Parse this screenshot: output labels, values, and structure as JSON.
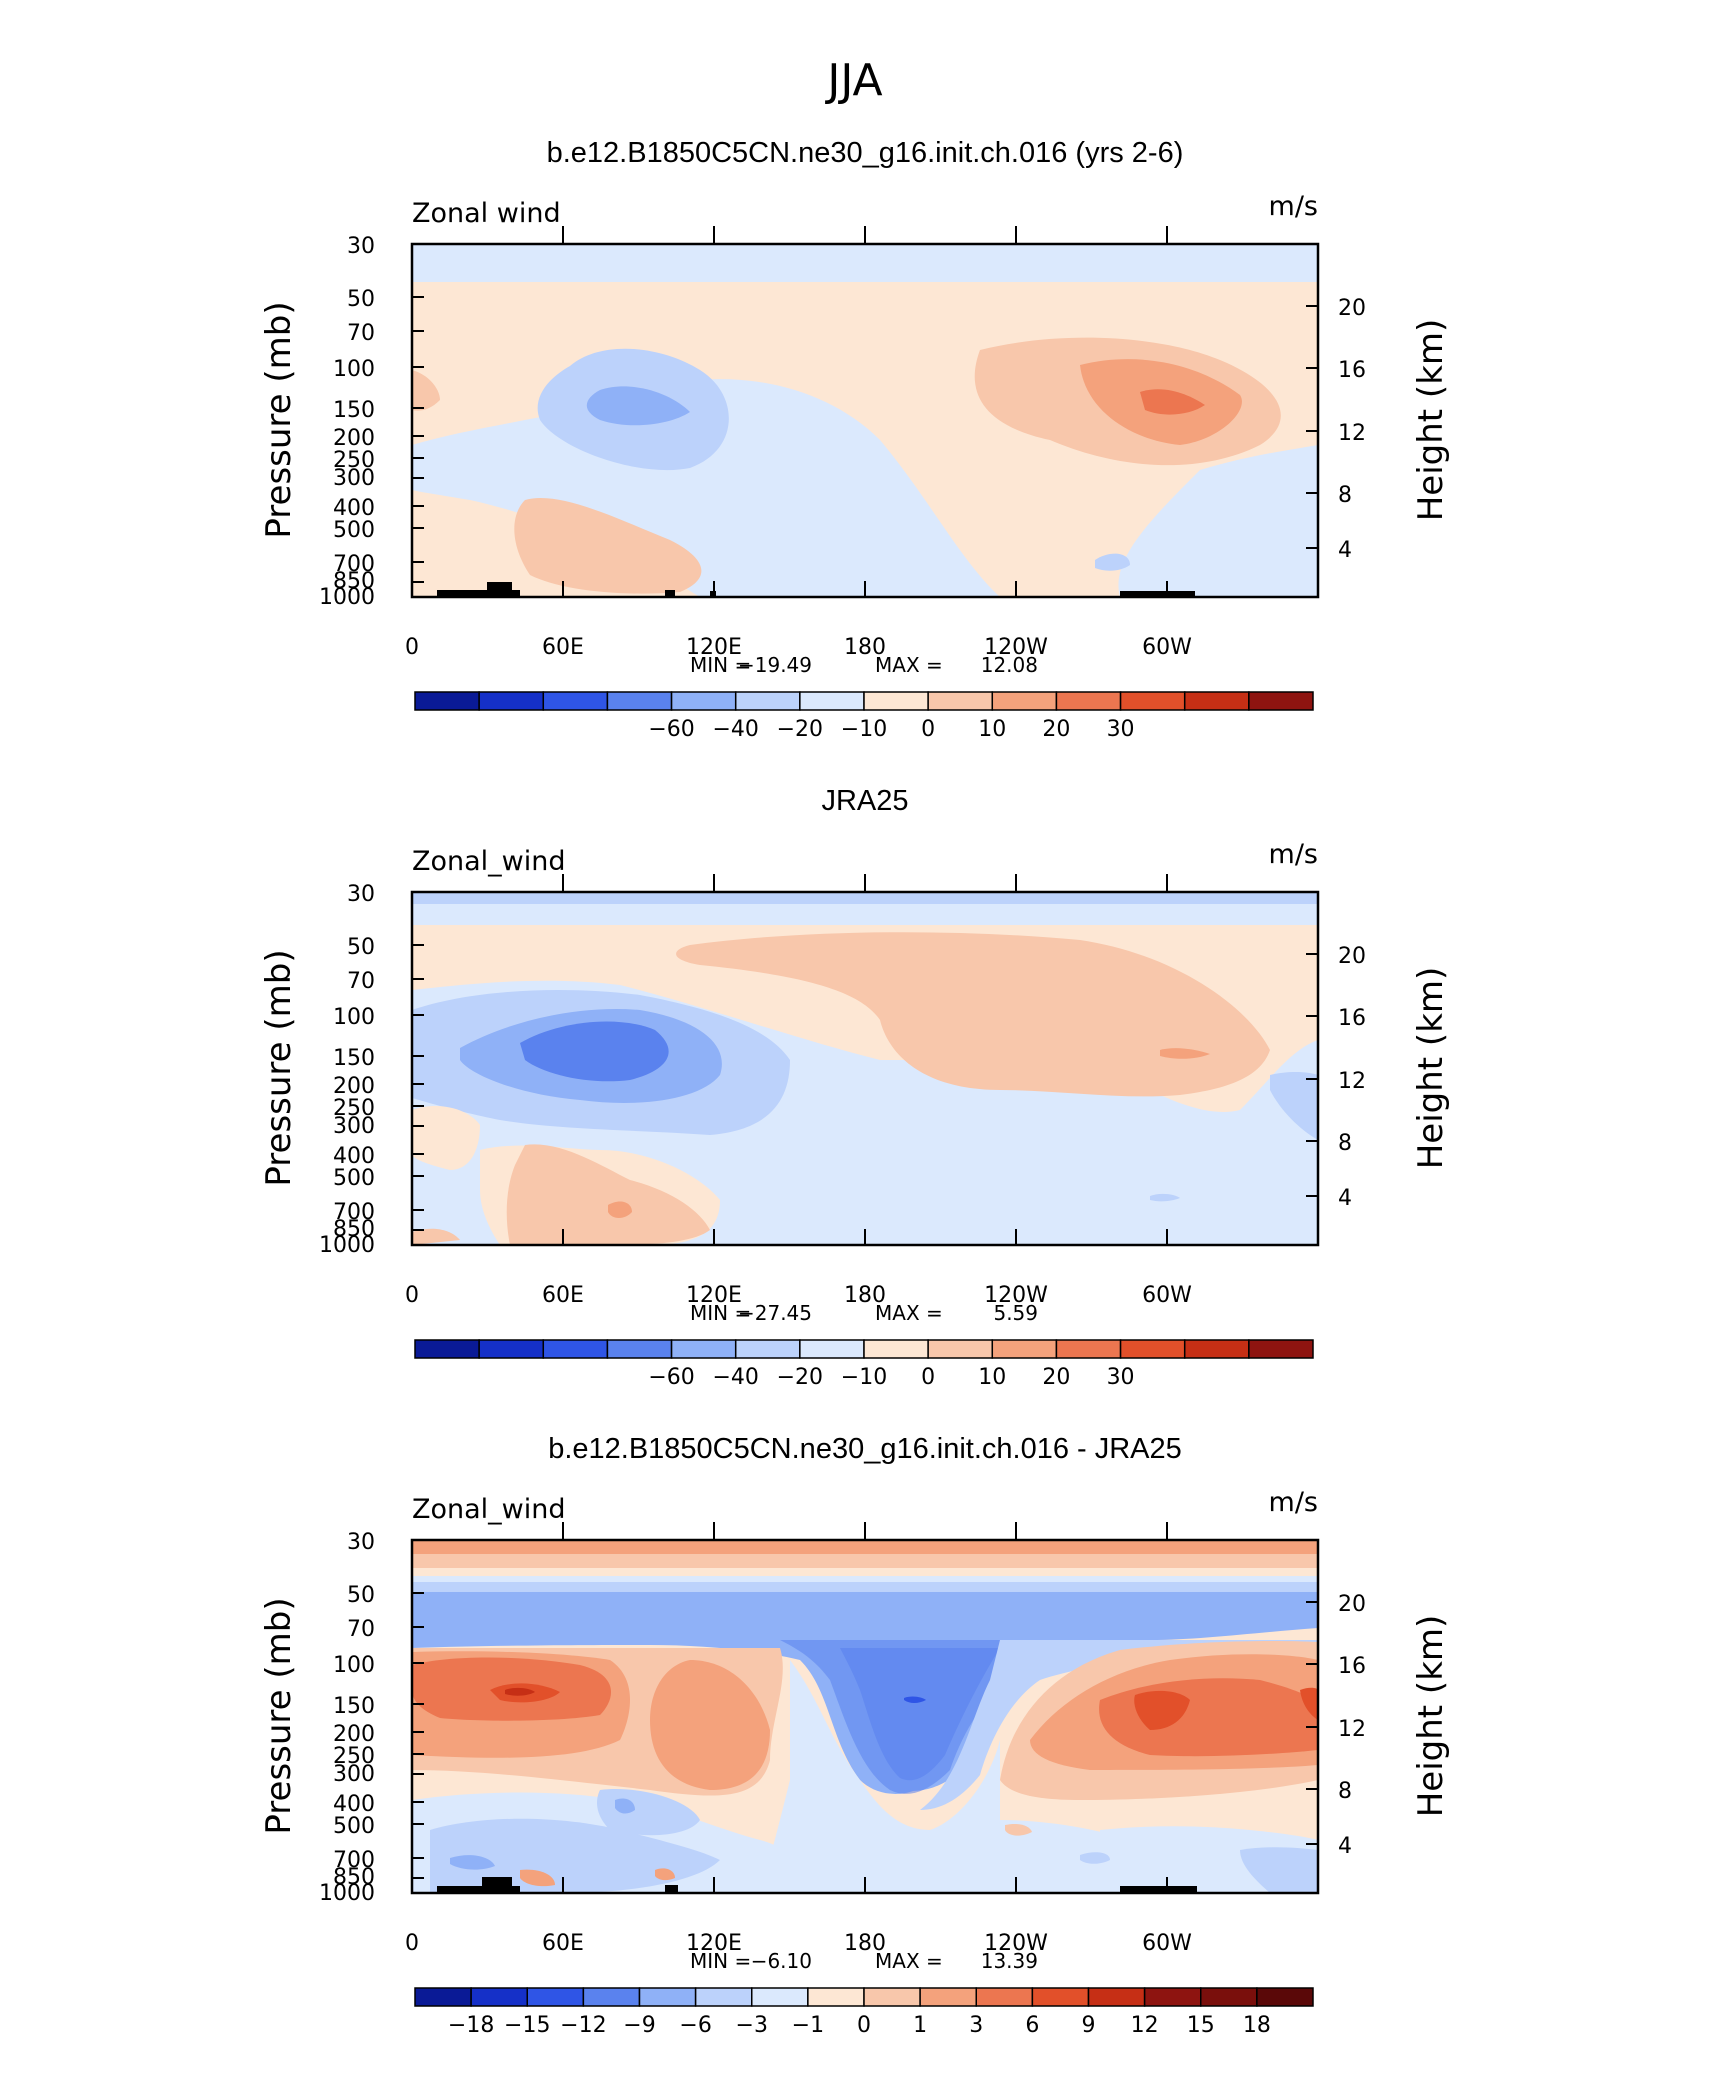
{
  "figure_title": "JJA",
  "chart_data": [
    {
      "type": "contour",
      "title": "b.e12.B1850C5CN.ne30_g16.init.ch.016 (yrs 2-6)",
      "left_label": "Zonal wind",
      "right_label": "m/s",
      "xlabel": "",
      "ylabel": "Pressure (mb)",
      "ylabel_right": "Height (km)",
      "x_ticks": [
        "0",
        "60E",
        "120E",
        "180",
        "120W",
        "60W"
      ],
      "pressure_ticks": [
        "30",
        "50",
        "70",
        "100",
        "150",
        "200",
        "250",
        "300",
        "400",
        "500",
        "700",
        "850",
        "1000"
      ],
      "height_ticks": [
        "20",
        "16",
        "12",
        "8",
        "4"
      ],
      "stats": {
        "min_label": "MIN =",
        "min": "−19.49",
        "max_label": "MAX =",
        "max": "12.08"
      },
      "colorbar": {
        "labels": [
          "−60",
          "−40",
          "−20",
          "−10",
          "0",
          "10",
          "20",
          "30"
        ],
        "colors": [
          "#0a1a96",
          "#1530c8",
          "#2f55e6",
          "#5a82ee",
          "#8fb1f7",
          "#bcd2fb",
          "#dbe9fd",
          "#fde7d4",
          "#f8c7ab",
          "#f4a27c",
          "#ec7650",
          "#e2502a",
          "#c62f15",
          "#8e1410"
        ]
      }
    },
    {
      "type": "contour",
      "title": "JRA25",
      "left_label": "Zonal_wind",
      "right_label": "m/s",
      "xlabel": "",
      "ylabel": "Pressure (mb)",
      "ylabel_right": "Height (km)",
      "x_ticks": [
        "0",
        "60E",
        "120E",
        "180",
        "120W",
        "60W"
      ],
      "pressure_ticks": [
        "30",
        "50",
        "70",
        "100",
        "150",
        "200",
        "250",
        "300",
        "400",
        "500",
        "700",
        "850",
        "1000"
      ],
      "height_ticks": [
        "20",
        "16",
        "12",
        "8",
        "4"
      ],
      "stats": {
        "min_label": "MIN =",
        "min": "−27.45",
        "max_label": "MAX =",
        "max": "5.59"
      },
      "colorbar": {
        "labels": [
          "−60",
          "−40",
          "−20",
          "−10",
          "0",
          "10",
          "20",
          "30"
        ],
        "colors": [
          "#0a1a96",
          "#1530c8",
          "#2f55e6",
          "#5a82ee",
          "#8fb1f7",
          "#bcd2fb",
          "#dbe9fd",
          "#fde7d4",
          "#f8c7ab",
          "#f4a27c",
          "#ec7650",
          "#e2502a",
          "#c62f15",
          "#8e1410"
        ]
      }
    },
    {
      "type": "contour",
      "title": "b.e12.B1850C5CN.ne30_g16.init.ch.016 - JRA25",
      "left_label": "Zonal_wind",
      "right_label": "m/s",
      "xlabel": "",
      "ylabel": "Pressure (mb)",
      "ylabel_right": "Height (km)",
      "x_ticks": [
        "0",
        "60E",
        "120E",
        "180",
        "120W",
        "60W"
      ],
      "pressure_ticks": [
        "30",
        "50",
        "70",
        "100",
        "150",
        "200",
        "250",
        "300",
        "400",
        "500",
        "700",
        "850",
        "1000"
      ],
      "height_ticks": [
        "20",
        "16",
        "12",
        "8",
        "4"
      ],
      "stats": {
        "min_label": "MIN =",
        "min": "−6.10",
        "max_label": "MAX =",
        "max": "13.39"
      },
      "colorbar": {
        "labels": [
          "−18",
          "−15",
          "−12",
          "−9",
          "−6",
          "−3",
          "−1",
          "0",
          "1",
          "3",
          "6",
          "9",
          "12",
          "15",
          "18"
        ],
        "colors": [
          "#0a1a96",
          "#1530c8",
          "#2f55e6",
          "#5a82ee",
          "#8fb1f7",
          "#bcd2fb",
          "#dbe9fd",
          "#fde7d4",
          "#f8c7ab",
          "#f4a27c",
          "#ec7650",
          "#e2502a",
          "#c62f15",
          "#8e1410",
          "#7a0f0c",
          "#5a0808"
        ]
      }
    }
  ]
}
